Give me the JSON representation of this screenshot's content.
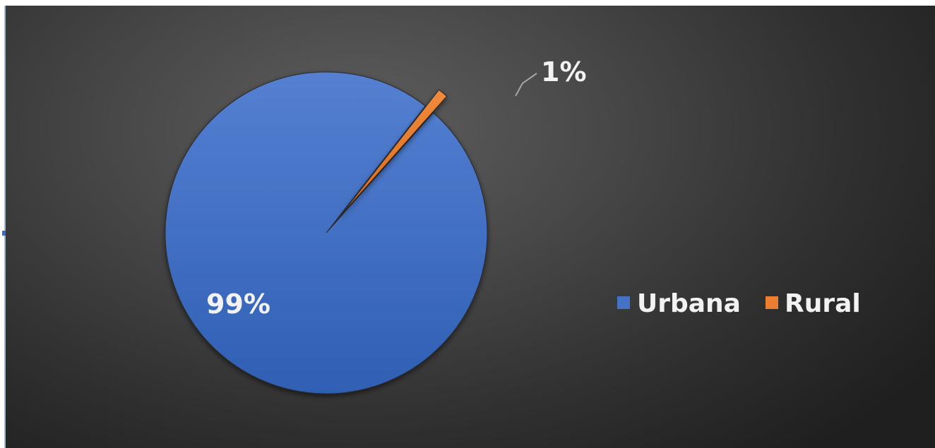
{
  "chart_data": {
    "type": "pie",
    "title": "",
    "categories": [
      "Urbana",
      "Rural"
    ],
    "values": [
      99,
      1
    ],
    "data_labels": [
      "99%",
      "1%"
    ],
    "colors": [
      "#4472c4",
      "#ed7d31"
    ],
    "slice_style": "exploded-rural",
    "legend": {
      "placement": "right",
      "entries": [
        "Urbana",
        "Rural"
      ]
    },
    "background": "dark-radial-gradient"
  }
}
